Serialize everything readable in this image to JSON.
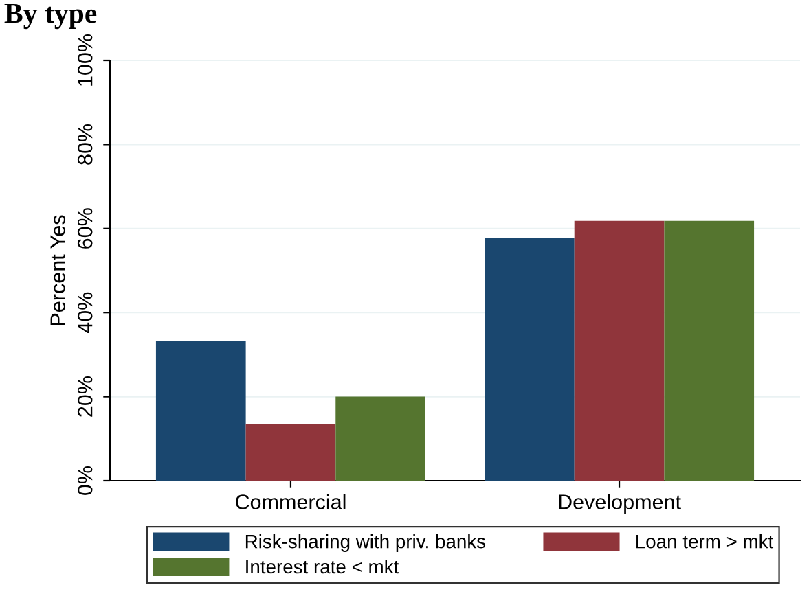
{
  "chart_data": {
    "type": "bar",
    "title": "By type",
    "ylabel": "Percent Yes",
    "categories": [
      "Commercial",
      "Development"
    ],
    "series": [
      {
        "name": "Risk-sharing with priv. banks",
        "color": "#1a476f",
        "values": [
          33.3,
          57.8
        ]
      },
      {
        "name": "Loan term > mkt",
        "color": "#90353b",
        "values": [
          13.4,
          61.8
        ]
      },
      {
        "name": "Interest rate < mkt",
        "color": "#55752f",
        "values": [
          20,
          61.8
        ]
      }
    ],
    "ylim": [
      0,
      100
    ],
    "yticks": [
      {
        "value": 0,
        "label": "0%"
      },
      {
        "value": 20,
        "label": "20%"
      },
      {
        "value": 40,
        "label": "40%"
      },
      {
        "value": 60,
        "label": "60%"
      },
      {
        "value": 80,
        "label": "80%"
      },
      {
        "value": 100,
        "label": "100%"
      }
    ],
    "grid": "y",
    "legend": "bottom"
  }
}
